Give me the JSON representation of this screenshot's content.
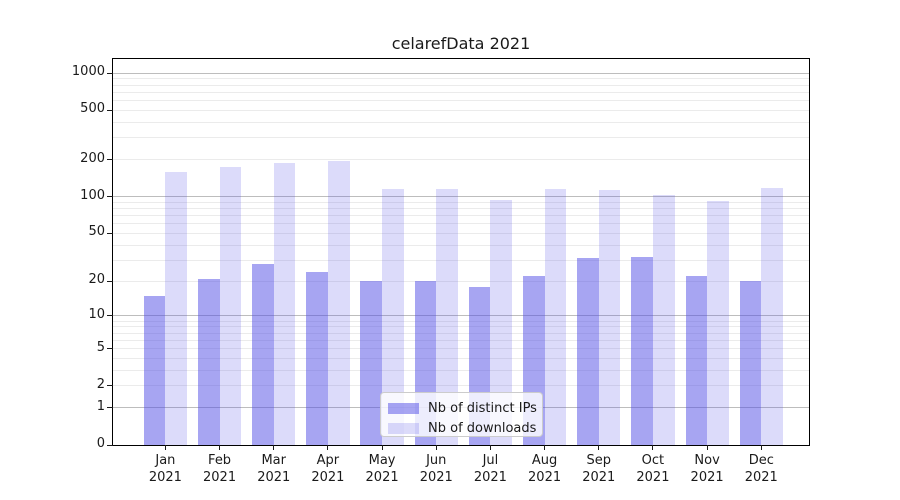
{
  "chart_data": {
    "type": "bar",
    "title": "celarefData 2021",
    "yscale": "log1p",
    "ylim": [
      0,
      1300
    ],
    "yticks": [
      0,
      1,
      2,
      5,
      10,
      20,
      50,
      100,
      200,
      500,
      1000
    ],
    "major_gridlines": [
      1,
      10,
      100,
      1000
    ],
    "grid": true,
    "legend_position": "inside-bottom-center",
    "categories": [
      "Jan 2021",
      "Feb 2021",
      "Mar 2021",
      "Apr 2021",
      "May 2021",
      "Jun 2021",
      "Jul 2021",
      "Aug 2021",
      "Sep 2021",
      "Oct 2021",
      "Nov 2021",
      "Dec 2021"
    ],
    "series": [
      {
        "name": "Nb of distinct IPs",
        "fill": "rgba(80,76,230,0.50)",
        "legend_hex": "#A8A6F2",
        "values": [
          15,
          21,
          28,
          24,
          20,
          20,
          18,
          22,
          31,
          32,
          22,
          20
        ]
      },
      {
        "name": "Nb of downloads",
        "fill": "rgba(80,76,230,0.20)",
        "legend_hex": "#DCDBF9",
        "values": [
          158,
          174,
          187,
          194,
          115,
          115,
          94,
          115,
          114,
          103,
          92,
          117
        ]
      }
    ],
    "colors": {
      "axis_spine": "#000000",
      "tick_label": "#1A1A1A",
      "major_grid": "#BDBDBD",
      "minor_grid": "#EBEBEB",
      "legend_border": "#CCCCCC"
    }
  }
}
